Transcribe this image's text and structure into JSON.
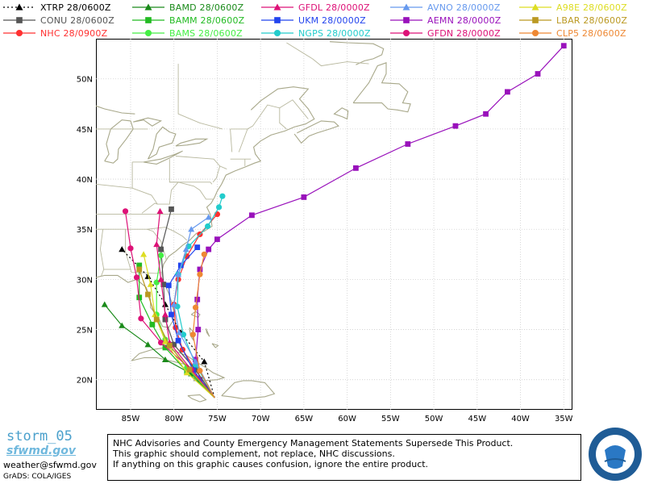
{
  "legend": [
    {
      "name": "XTRP",
      "time": "28/0600Z",
      "color": "#000000",
      "marker": "triangle",
      "dash": true
    },
    {
      "name": "CONU",
      "time": "28/0600Z",
      "color": "#555555",
      "marker": "square"
    },
    {
      "name": "NHC",
      "time": "28/0900Z",
      "color": "#ff3030",
      "marker": "circle"
    },
    {
      "name": "BAMD",
      "time": "28/0600Z",
      "color": "#1a8a1a",
      "marker": "triangle"
    },
    {
      "name": "BAMM",
      "time": "28/0600Z",
      "color": "#22bb22",
      "marker": "square"
    },
    {
      "name": "BAMS",
      "time": "28/0600Z",
      "color": "#44ee44",
      "marker": "circle"
    },
    {
      "name": "GFDL",
      "time": "28/0000Z",
      "color": "#dd1177",
      "marker": "triangle"
    },
    {
      "name": "UKM",
      "time": "28/0000Z",
      "color": "#2244ee",
      "marker": "square"
    },
    {
      "name": "NGPS",
      "time": "28/0000Z",
      "color": "#22cccc",
      "marker": "circle"
    },
    {
      "name": "AVNO",
      "time": "28/0000Z",
      "color": "#6699ee",
      "marker": "triangle"
    },
    {
      "name": "AEMN",
      "time": "28/0000Z",
      "color": "#9911bb",
      "marker": "square"
    },
    {
      "name": "GFDN",
      "time": "28/0000Z",
      "color": "#dd1177",
      "marker": "circle"
    },
    {
      "name": "A98E",
      "time": "28/0600Z",
      "color": "#dddd22",
      "marker": "triangle"
    },
    {
      "name": "LBAR",
      "time": "28/0600Z",
      "color": "#bb9922",
      "marker": "square"
    },
    {
      "name": "CLP5",
      "time": "28/0600Z",
      "color": "#ee8833",
      "marker": "circle"
    }
  ],
  "axes": {
    "lon_labels": [
      "85W",
      "80W",
      "75W",
      "70W",
      "65W",
      "60W",
      "55W",
      "50W",
      "45W",
      "40W",
      "35W"
    ],
    "lat_labels": [
      "20N",
      "25N",
      "30N",
      "35N",
      "40N",
      "45N",
      "50N"
    ],
    "lon_range": [
      -89,
      -34
    ],
    "lat_range": [
      17,
      54
    ]
  },
  "tracks": [
    {
      "model": "AEMN",
      "color": "#9911bb",
      "marker": "square",
      "points": [
        [
          -75.3,
          18.2
        ],
        [
          -77,
          20
        ],
        [
          -77.5,
          22
        ],
        [
          -77.2,
          25
        ],
        [
          -77.3,
          28
        ],
        [
          -77,
          31
        ],
        [
          -76,
          33
        ],
        [
          -75,
          34
        ],
        [
          -71,
          36.4
        ],
        [
          -65,
          38.2
        ],
        [
          -59,
          41.1
        ],
        [
          -53,
          43.5
        ],
        [
          -47.5,
          45.3
        ],
        [
          -44,
          46.5
        ],
        [
          -41.5,
          48.7
        ],
        [
          -38,
          50.5
        ],
        [
          -35,
          53.3
        ]
      ]
    },
    {
      "model": "NHC",
      "color": "#ff3030",
      "marker": "circle",
      "points": [
        [
          -75.3,
          18.2
        ],
        [
          -77.5,
          21
        ],
        [
          -79,
          23
        ],
        [
          -79.8,
          25.2
        ],
        [
          -80,
          27.5
        ],
        [
          -79.5,
          30
        ],
        [
          -78.5,
          32.3
        ],
        [
          -77,
          34.5
        ],
        [
          -75,
          36.5
        ]
      ]
    },
    {
      "model": "XTRP",
      "color": "#000000",
      "marker": "triangle",
      "dash": true,
      "points": [
        [
          -75.3,
          18.2
        ],
        [
          -76.5,
          21.8
        ],
        [
          -79.2,
          24.7
        ],
        [
          -81,
          27.5
        ],
        [
          -83,
          30.3
        ],
        [
          -86,
          33
        ]
      ]
    },
    {
      "model": "CONU",
      "color": "#555555",
      "marker": "square",
      "points": [
        [
          -75.3,
          18.2
        ],
        [
          -77.5,
          21
        ],
        [
          -80,
          23.5
        ],
        [
          -81,
          26
        ],
        [
          -81.2,
          29.5
        ],
        [
          -81.5,
          33
        ],
        [
          -80.3,
          37
        ]
      ]
    },
    {
      "model": "BAMD",
      "color": "#1a8a1a",
      "marker": "triangle",
      "points": [
        [
          -75.3,
          18.2
        ],
        [
          -78,
          20.6
        ],
        [
          -81,
          22
        ],
        [
          -83,
          23.5
        ],
        [
          -86,
          25.4
        ],
        [
          -88,
          27.5
        ]
      ]
    },
    {
      "model": "BAMM",
      "color": "#22bb22",
      "marker": "square",
      "points": [
        [
          -75.3,
          18.2
        ],
        [
          -78.5,
          20.8
        ],
        [
          -81,
          23.2
        ],
        [
          -82.5,
          25.5
        ],
        [
          -84,
          28.2
        ],
        [
          -84,
          31.4
        ]
      ]
    },
    {
      "model": "BAMS",
      "color": "#44ee44",
      "marker": "circle",
      "points": [
        [
          -75.3,
          18.2
        ],
        [
          -78.5,
          21.2
        ],
        [
          -81,
          24
        ],
        [
          -82,
          26.5
        ],
        [
          -82,
          29.7
        ],
        [
          -81.5,
          32.4
        ]
      ]
    },
    {
      "model": "GFDL",
      "color": "#dd1177",
      "marker": "triangle",
      "points": [
        [
          -75.3,
          18.2
        ],
        [
          -78,
          21
        ],
        [
          -80.5,
          23.7
        ],
        [
          -81,
          26.5
        ],
        [
          -81.5,
          30
        ],
        [
          -82,
          33.5
        ],
        [
          -81.6,
          36.8
        ]
      ]
    },
    {
      "model": "UKM",
      "color": "#2244ee",
      "marker": "square",
      "points": [
        [
          -75.3,
          18.2
        ],
        [
          -77.8,
          21
        ],
        [
          -79.5,
          23.9
        ],
        [
          -80.3,
          26.5
        ],
        [
          -80.6,
          29.4
        ],
        [
          -79.2,
          31.4
        ],
        [
          -77.3,
          33.2
        ]
      ]
    },
    {
      "model": "NGPS",
      "color": "#22cccc",
      "marker": "circle",
      "points": [
        [
          -75.3,
          18.2
        ],
        [
          -77.5,
          21.5
        ],
        [
          -78.9,
          24.5
        ],
        [
          -79.6,
          27.3
        ],
        [
          -79.5,
          30.5
        ],
        [
          -78.3,
          33.3
        ],
        [
          -76.1,
          35.3
        ],
        [
          -74.8,
          37.2
        ],
        [
          -74.4,
          38.3
        ]
      ]
    },
    {
      "model": "AVNO",
      "color": "#6699ee",
      "marker": "triangle",
      "points": [
        [
          -75.3,
          18.2
        ],
        [
          -77.5,
          21.8
        ],
        [
          -79.4,
          24.7
        ],
        [
          -80,
          27.5
        ],
        [
          -79.5,
          30.5
        ],
        [
          -78.6,
          33
        ],
        [
          -78,
          35
        ],
        [
          -76,
          36.2
        ]
      ]
    },
    {
      "model": "GFDN",
      "color": "#dd1177",
      "marker": "circle",
      "points": [
        [
          -75.3,
          18.2
        ],
        [
          -78,
          21
        ],
        [
          -81.5,
          23.7
        ],
        [
          -83.8,
          26.1
        ],
        [
          -84.3,
          30.2
        ],
        [
          -85,
          33.1
        ],
        [
          -85.6,
          36.8
        ]
      ]
    },
    {
      "model": "A98E",
      "color": "#dddd22",
      "marker": "triangle",
      "points": [
        [
          -75.3,
          18.2
        ],
        [
          -78.5,
          20.7
        ],
        [
          -81,
          23.8
        ],
        [
          -82.2,
          26.5
        ],
        [
          -82.7,
          29.5
        ],
        [
          -83.5,
          32.5
        ]
      ]
    },
    {
      "model": "LBAR",
      "color": "#bb9922",
      "marker": "square",
      "points": [
        [
          -75.3,
          18.2
        ],
        [
          -78.2,
          21
        ],
        [
          -80.5,
          23.4
        ],
        [
          -82,
          26
        ],
        [
          -83,
          28.5
        ],
        [
          -84,
          31
        ]
      ]
    },
    {
      "model": "CLP5",
      "color": "#ee8833",
      "marker": "circle",
      "points": [
        [
          -75.3,
          18.2
        ],
        [
          -77,
          20.9
        ],
        [
          -77.8,
          24.5
        ],
        [
          -77.5,
          27.2
        ],
        [
          -77,
          30.5
        ],
        [
          -76.5,
          32.5
        ]
      ]
    }
  ],
  "footer": {
    "line1": "NHC Advisories and County Emergency Management Statements Supersede This Product.",
    "line2": "This graphic should complement, not replace, NHC discussions.",
    "line3": "If anything on this graphic causes confusion, ignore the entire product."
  },
  "logo": {
    "name": "storm_05",
    "sub": "sfwmd.gov"
  },
  "email": "weather@sfwmd.gov",
  "credit": "GrADS: COLA/IGES"
}
